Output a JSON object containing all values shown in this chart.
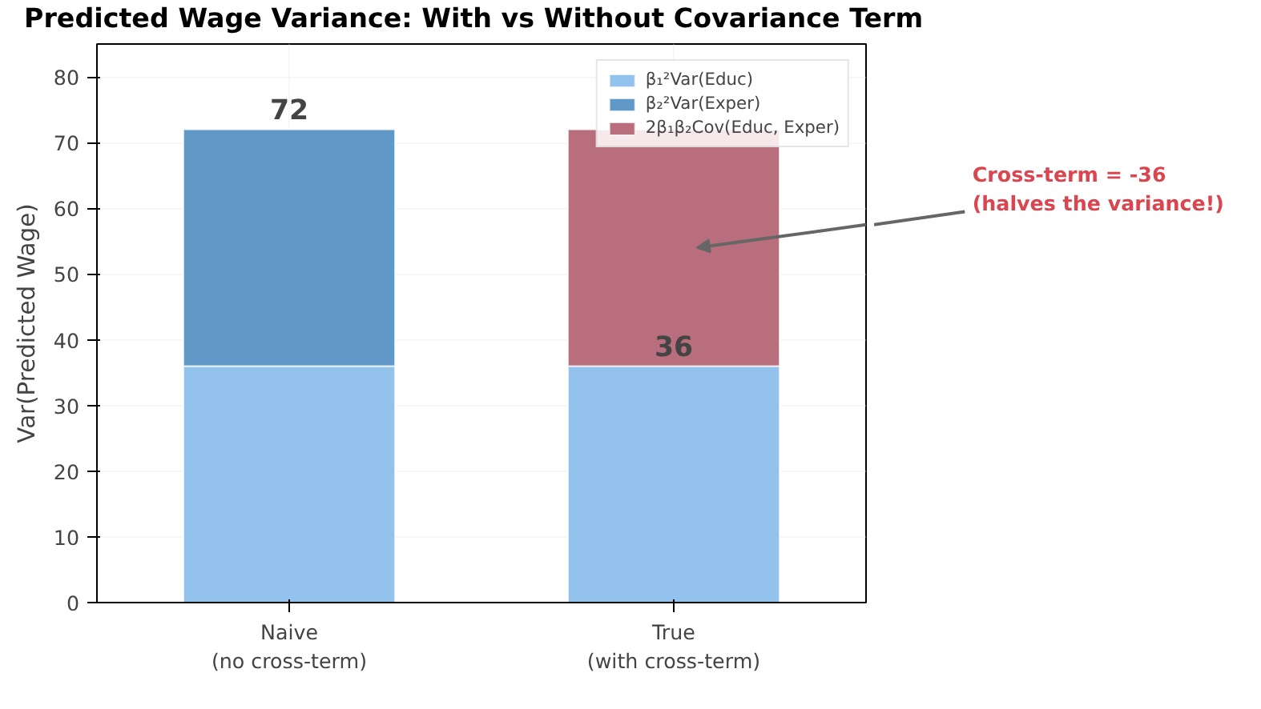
{
  "chart_data": {
    "type": "bar",
    "title": "Predicted Wage Variance: With vs Without Covariance Term",
    "ylabel": "Var(Predicted Wage)",
    "categories": [
      "Naive\n(no cross-term)",
      "True\n(with cross-term)"
    ],
    "stacked": true,
    "series": [
      {
        "name": "β₁²Var(Educ)",
        "color": "#93c3ec",
        "values": [
          36,
          36
        ],
        "value_labels": [
          null,
          "36"
        ]
      },
      {
        "name": "β₂²Var(Exper)",
        "color": "#6099c7",
        "values": [
          36,
          null
        ]
      },
      {
        "name": "2β₁β₂Cov(Educ, Exper)",
        "color": "#b86e7c",
        "values": [
          null,
          -36
        ],
        "base": [
          null,
          72
        ]
      }
    ],
    "totals": [
      "72",
      null
    ],
    "annotations": [
      "Cross-term = -36\n(halves the variance!)"
    ],
    "ylim": [
      0,
      85
    ],
    "yticks": [
      0,
      10,
      20,
      30,
      40,
      50,
      60,
      70,
      80
    ],
    "grid": true,
    "legend": "top right"
  }
}
